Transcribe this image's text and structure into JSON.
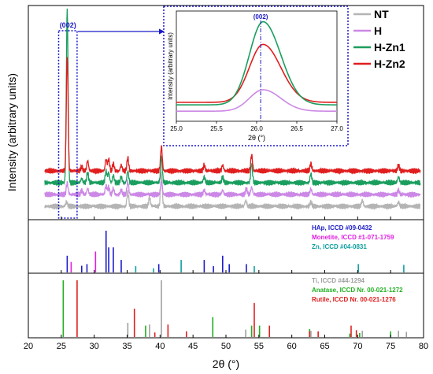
{
  "chart_data": {
    "type": "line",
    "xlabel": "2θ (°)",
    "ylabel": "Intensity (arbitrary units)",
    "xlim": [
      20,
      80
    ],
    "x_ticks": [
      20,
      25,
      30,
      35,
      40,
      45,
      50,
      55,
      60,
      65,
      70,
      75,
      80
    ],
    "grid": false,
    "legend": {
      "placement": "top-right"
    },
    "main_panel": {
      "series": [
        {
          "name": "NT",
          "color": "#b4b4b4",
          "offset": 0,
          "peaks": [
            [
              25.8,
              0.3
            ],
            [
              35.1,
              1.0
            ],
            [
              38.4,
              0.6
            ],
            [
              40.2,
              2.2
            ],
            [
              53.0,
              0.4
            ],
            [
              62.9,
              0.3
            ],
            [
              70.7,
              0.4
            ],
            [
              76.2,
              0.3
            ]
          ]
        },
        {
          "name": "H",
          "color": "#cc88e6",
          "offset": 1,
          "peaks": [
            [
              25.9,
              0.8
            ],
            [
              28.1,
              0.3
            ],
            [
              29.0,
              0.4
            ],
            [
              31.8,
              0.6
            ],
            [
              32.2,
              0.5
            ],
            [
              32.9,
              0.4
            ],
            [
              34.1,
              0.3
            ],
            [
              35.1,
              0.9
            ],
            [
              40.2,
              0.9
            ],
            [
              46.7,
              0.3
            ],
            [
              49.5,
              0.3
            ],
            [
              53.1,
              0.4
            ],
            [
              53.9,
              0.5
            ],
            [
              62.9,
              0.4
            ],
            [
              76.2,
              0.3
            ]
          ]
        },
        {
          "name": "H-Zn1",
          "color": "#1a9e5e",
          "offset": 2,
          "peaks": [
            [
              25.9,
              12.0
            ],
            [
              28.1,
              0.3
            ],
            [
              29.0,
              0.7
            ],
            [
              31.8,
              0.8
            ],
            [
              32.2,
              0.7
            ],
            [
              32.9,
              0.5
            ],
            [
              34.1,
              0.4
            ],
            [
              35.1,
              0.8
            ],
            [
              40.2,
              1.8
            ],
            [
              46.7,
              0.4
            ],
            [
              49.5,
              0.4
            ],
            [
              53.9,
              1.3
            ],
            [
              62.9,
              0.6
            ],
            [
              76.2,
              0.4
            ]
          ]
        },
        {
          "name": "H-Zn2",
          "color": "#e01e1e",
          "offset": 3,
          "peaks": [
            [
              25.9,
              8.0
            ],
            [
              28.1,
              0.3
            ],
            [
              29.0,
              0.7
            ],
            [
              31.8,
              0.8
            ],
            [
              32.2,
              0.8
            ],
            [
              32.9,
              0.5
            ],
            [
              34.1,
              0.4
            ],
            [
              35.1,
              0.9
            ],
            [
              40.2,
              1.7
            ],
            [
              46.7,
              0.4
            ],
            [
              49.5,
              0.4
            ],
            [
              53.9,
              1.1
            ],
            [
              62.9,
              0.5
            ],
            [
              76.2,
              0.4
            ]
          ]
        }
      ],
      "highlight_label": "(002)",
      "highlight_range": [
        24.6,
        27.4
      ]
    },
    "inset": {
      "xlabel": "2θ (°)",
      "ylabel": "Intensity (arbitrary units)",
      "xlim": [
        25.0,
        27.0
      ],
      "x_ticks": [
        "25.0",
        "25.5",
        "26.0",
        "26.5",
        "27.0"
      ],
      "marker_label": "(002)",
      "marker_x": 26.05,
      "series": [
        {
          "name": "H",
          "color": "#cc88e6",
          "baseline": 0.8,
          "peak_height": 1.7
        },
        {
          "name": "H-Zn2",
          "color": "#e01e1e",
          "baseline": 1.5,
          "peak_height": 4.6
        },
        {
          "name": "H-Zn1",
          "color": "#1a9e5e",
          "baseline": 1.3,
          "peak_height": 6.6
        }
      ]
    },
    "reference_panel_1": {
      "legend": [
        {
          "label": "HAp, ICCD #09-0432",
          "color": "#1c1cc8"
        },
        {
          "label": "Monetite, ICCD #1-071-1759",
          "color": "#e01ee0"
        },
        {
          "label": "Zn, ICCD #04-0831",
          "color": "#10a0a0"
        }
      ],
      "lines": [
        {
          "x": 25.9,
          "h": 0.4,
          "c": "#1c1cc8"
        },
        {
          "x": 28.1,
          "h": 0.16,
          "c": "#1c1cc8"
        },
        {
          "x": 28.9,
          "h": 0.2,
          "c": "#1c1cc8"
        },
        {
          "x": 31.8,
          "h": 1.0,
          "c": "#1c1cc8"
        },
        {
          "x": 32.2,
          "h": 0.6,
          "c": "#1c1cc8"
        },
        {
          "x": 32.9,
          "h": 0.6,
          "c": "#1c1cc8"
        },
        {
          "x": 34.1,
          "h": 0.3,
          "c": "#1c1cc8"
        },
        {
          "x": 39.8,
          "h": 0.2,
          "c": "#1c1cc8"
        },
        {
          "x": 46.7,
          "h": 0.3,
          "c": "#1c1cc8"
        },
        {
          "x": 48.1,
          "h": 0.15,
          "c": "#1c1cc8"
        },
        {
          "x": 49.5,
          "h": 0.4,
          "c": "#1c1cc8"
        },
        {
          "x": 50.5,
          "h": 0.2,
          "c": "#1c1cc8"
        },
        {
          "x": 53.1,
          "h": 0.2,
          "c": "#1c1cc8"
        },
        {
          "x": 26.5,
          "h": 0.25,
          "c": "#e01ee0"
        },
        {
          "x": 30.2,
          "h": 0.5,
          "c": "#e01ee0"
        },
        {
          "x": 36.3,
          "h": 0.15,
          "c": "#10a0a0"
        },
        {
          "x": 39.0,
          "h": 0.1,
          "c": "#10a0a0"
        },
        {
          "x": 43.2,
          "h": 0.3,
          "c": "#10a0a0"
        },
        {
          "x": 54.3,
          "h": 0.15,
          "c": "#10a0a0"
        },
        {
          "x": 70.1,
          "h": 0.2,
          "c": "#10a0a0"
        },
        {
          "x": 77.0,
          "h": 0.18,
          "c": "#10a0a0"
        }
      ]
    },
    "reference_panel_2": {
      "legend": [
        {
          "label": "Ti, ICCD #44-1294",
          "color": "#a0a0a0"
        },
        {
          "label": "Anatase, ICCD Nr. 00-021-1272",
          "color": "#20b020"
        },
        {
          "label": "Rutile, ICCD Nr. 00-021-1276",
          "color": "#e01e1e"
        }
      ],
      "lines": [
        {
          "x": 35.1,
          "h": 0.25,
          "c": "#a0a0a0"
        },
        {
          "x": 38.4,
          "h": 0.22,
          "c": "#a0a0a0"
        },
        {
          "x": 40.2,
          "h": 1.0,
          "c": "#a0a0a0"
        },
        {
          "x": 53.0,
          "h": 0.13,
          "c": "#a0a0a0"
        },
        {
          "x": 62.9,
          "h": 0.11,
          "c": "#a0a0a0"
        },
        {
          "x": 70.7,
          "h": 0.11,
          "c": "#a0a0a0"
        },
        {
          "x": 76.2,
          "h": 0.11,
          "c": "#a0a0a0"
        },
        {
          "x": 77.4,
          "h": 0.09,
          "c": "#a0a0a0"
        },
        {
          "x": 25.3,
          "h": 1.0,
          "c": "#20b020"
        },
        {
          "x": 37.8,
          "h": 0.2,
          "c": "#20b020"
        },
        {
          "x": 48.0,
          "h": 0.35,
          "c": "#20b020"
        },
        {
          "x": 53.9,
          "h": 0.2,
          "c": "#20b020"
        },
        {
          "x": 55.1,
          "h": 0.2,
          "c": "#20b020"
        },
        {
          "x": 62.7,
          "h": 0.14,
          "c": "#20b020"
        },
        {
          "x": 68.8,
          "h": 0.06,
          "c": "#20b020"
        },
        {
          "x": 70.3,
          "h": 0.07,
          "c": "#20b020"
        },
        {
          "x": 75.0,
          "h": 0.1,
          "c": "#20b020"
        },
        {
          "x": 27.4,
          "h": 1.0,
          "c": "#e01e1e"
        },
        {
          "x": 36.1,
          "h": 0.5,
          "c": "#e01e1e"
        },
        {
          "x": 39.2,
          "h": 0.08,
          "c": "#e01e1e"
        },
        {
          "x": 41.2,
          "h": 0.22,
          "c": "#e01e1e"
        },
        {
          "x": 44.0,
          "h": 0.1,
          "c": "#e01e1e"
        },
        {
          "x": 54.3,
          "h": 0.6,
          "c": "#e01e1e"
        },
        {
          "x": 56.6,
          "h": 0.2,
          "c": "#e01e1e"
        },
        {
          "x": 62.7,
          "h": 0.1,
          "c": "#e01e1e"
        },
        {
          "x": 64.0,
          "h": 0.1,
          "c": "#e01e1e"
        },
        {
          "x": 69.0,
          "h": 0.2,
          "c": "#e01e1e"
        },
        {
          "x": 69.8,
          "h": 0.12,
          "c": "#e01e1e"
        }
      ]
    }
  }
}
